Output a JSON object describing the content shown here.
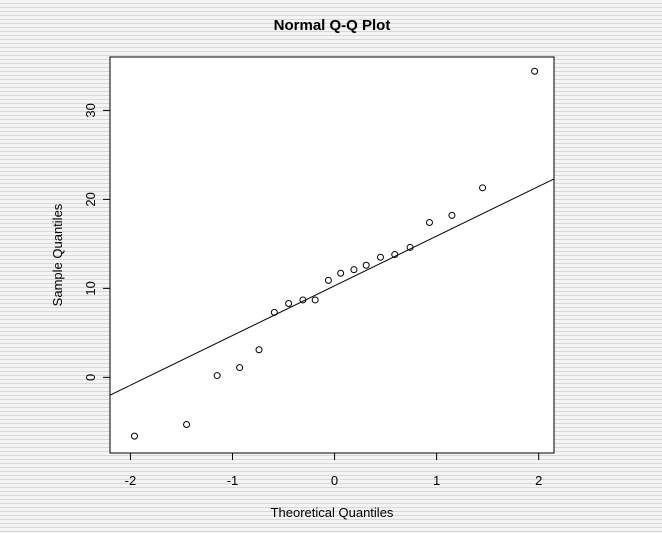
{
  "chart_data": {
    "type": "scatter",
    "title": "Normal Q-Q Plot",
    "xlabel": "Theoretical Quantiles",
    "ylabel": "Sample Quantiles",
    "xlim": [
      -2.2,
      2.15
    ],
    "ylim": [
      -8.5,
      36
    ],
    "xticks": [
      -2,
      -1,
      0,
      1,
      2
    ],
    "yticks": [
      0,
      10,
      20,
      30
    ],
    "xtick_labels": [
      "-2",
      "-1",
      "0",
      "1",
      "2"
    ],
    "ytick_labels": [
      "0",
      "10",
      "20",
      "30"
    ],
    "grid": false,
    "legend": "none",
    "marker": "open-circle",
    "points": [
      {
        "x": -1.96,
        "y": -6.6
      },
      {
        "x": -1.45,
        "y": -5.3
      },
      {
        "x": -1.15,
        "y": 0.2
      },
      {
        "x": -0.93,
        "y": 1.1
      },
      {
        "x": -0.74,
        "y": 3.1
      },
      {
        "x": -0.59,
        "y": 7.3
      },
      {
        "x": -0.45,
        "y": 8.3
      },
      {
        "x": -0.31,
        "y": 8.7
      },
      {
        "x": -0.19,
        "y": 8.7
      },
      {
        "x": -0.06,
        "y": 10.9
      },
      {
        "x": 0.06,
        "y": 11.7
      },
      {
        "x": 0.19,
        "y": 12.1
      },
      {
        "x": 0.31,
        "y": 12.6
      },
      {
        "x": 0.45,
        "y": 13.5
      },
      {
        "x": 0.59,
        "y": 13.8
      },
      {
        "x": 0.74,
        "y": 14.6
      },
      {
        "x": 0.93,
        "y": 17.4
      },
      {
        "x": 1.15,
        "y": 18.2
      },
      {
        "x": 1.45,
        "y": 21.3
      },
      {
        "x": 1.96,
        "y": 34.4
      }
    ],
    "reference_line": {
      "x1": -2.2,
      "y1": -2.0,
      "x2": 2.15,
      "y2": 22.3
    }
  }
}
